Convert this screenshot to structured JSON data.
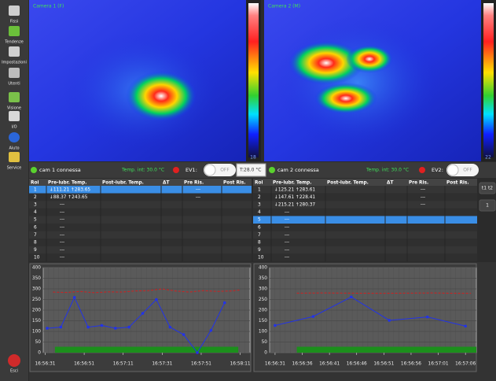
{
  "sidebar": {
    "items": [
      "Fissi",
      "Tendenze",
      "Impostazioni",
      "Utenti",
      "Visione",
      "I/O",
      "Aiuto",
      "Service"
    ],
    "exit": "Esci"
  },
  "cameras": [
    {
      "label": "Camera 1 (F)",
      "scale_bottom": "18"
    },
    {
      "label": "Camera 2 (M)",
      "scale_bottom": "22"
    }
  ],
  "status": [
    {
      "connection": "cam 1 connessa",
      "temp": "Temp. int: 30.0 °C",
      "ev": "EV1:",
      "toggle": "OFF",
      "setpoint": "T:28.0 °C"
    },
    {
      "connection": "cam 2 connessa",
      "temp": "Temp. int: 30.0 °C",
      "ev": "EV2:",
      "toggle": "OFF"
    }
  ],
  "tables": [
    {
      "columns": [
        "Roi",
        "Pre-lubr. Temp.",
        "Post-lubr. Temp.",
        "ΔT",
        "Pre Ris.",
        "Post Ris."
      ],
      "selected_row": 0,
      "rows": [
        {
          "roi": "1",
          "pre": "↓111.21 ↑283.65",
          "pre_ris": "---"
        },
        {
          "roi": "2",
          "pre": "↓88.37 ↑243.65",
          "pre_ris": "---"
        },
        {
          "roi": "3",
          "pre": "---"
        },
        {
          "roi": "4",
          "pre": "---"
        },
        {
          "roi": "5",
          "pre": "---"
        },
        {
          "roi": "6",
          "pre": "---"
        },
        {
          "roi": "7",
          "pre": "---"
        },
        {
          "roi": "8",
          "pre": "---"
        },
        {
          "roi": "9",
          "pre": "---"
        },
        {
          "roi": "10",
          "pre": "---"
        }
      ]
    },
    {
      "columns": [
        "Roi",
        "Pre-lubr. Temp.",
        "Post-lubr. Temp.",
        "ΔT",
        "Pre Ris.",
        "Post Ris."
      ],
      "selected_row": 4,
      "rows": [
        {
          "roi": "1",
          "pre": "↓125.21 ↑283.61",
          "pre_ris": "---"
        },
        {
          "roi": "2",
          "pre": "↓147.61 ↑228.41",
          "pre_ris": "---"
        },
        {
          "roi": "3",
          "pre": "↓215.21 ↑280.37",
          "pre_ris": "---"
        },
        {
          "roi": "4",
          "pre": "---"
        },
        {
          "roi": "5",
          "pre": "---"
        },
        {
          "roi": "6",
          "pre": "---"
        },
        {
          "roi": "7",
          "pre": "---"
        },
        {
          "roi": "8",
          "pre": "---"
        },
        {
          "roi": "9",
          "pre": "---"
        },
        {
          "roi": "10",
          "pre": "---"
        }
      ]
    }
  ],
  "side_buttons": [
    "t1 t2",
    "1"
  ],
  "chart_data": [
    {
      "type": "line",
      "grid": true,
      "xlim": [
        60990,
        61096
      ],
      "ylim": [
        0,
        400
      ],
      "yticks": [
        0,
        50,
        100,
        150,
        200,
        250,
        300,
        350,
        400
      ],
      "xticks": [
        {
          "value": 60991,
          "label": "16:56:31"
        },
        {
          "value": 61011,
          "label": "16:56:51"
        },
        {
          "value": 61031,
          "label": "16:57:11"
        },
        {
          "value": 61051,
          "label": "16:57:31"
        },
        {
          "value": 61071,
          "label": "16:57:51"
        },
        {
          "value": 61091,
          "label": "16:58:11"
        }
      ],
      "series": [
        {
          "color": "#1c8f1c",
          "fill": true,
          "x": [
            60996,
            61090
          ],
          "values": [
            28,
            28
          ]
        },
        {
          "color": "#d02020",
          "dashed": true,
          "x": [
            60995,
            61002,
            61009,
            61016,
            61023,
            61030,
            61037,
            61044,
            61051,
            61058,
            61065,
            61072,
            61079,
            61086,
            61091
          ],
          "values": [
            285,
            283,
            288,
            282,
            286,
            285,
            290,
            292,
            300,
            290,
            285,
            292,
            288,
            290,
            295
          ]
        },
        {
          "color": "#2233e8",
          "markers": true,
          "x": [
            60992,
            60999,
            61006,
            61013,
            61020,
            61027,
            61034,
            61041,
            61048,
            61055,
            61062,
            61069,
            61076,
            61083
          ],
          "values": [
            115,
            120,
            260,
            120,
            128,
            115,
            120,
            185,
            250,
            120,
            85,
            0,
            105,
            235
          ]
        }
      ]
    },
    {
      "type": "line",
      "grid": true,
      "xlim": [
        60990,
        61028
      ],
      "ylim": [
        0,
        400
      ],
      "yticks": [
        0,
        50,
        100,
        150,
        200,
        250,
        300,
        350,
        400
      ],
      "xticks": [
        {
          "value": 60991,
          "label": "16:56:31"
        },
        {
          "value": 60996,
          "label": "16:56:36"
        },
        {
          "value": 61001,
          "label": "16:56:41"
        },
        {
          "value": 61006,
          "label": "16:56:46"
        },
        {
          "value": 61011,
          "label": "16:56:51"
        },
        {
          "value": 61016,
          "label": "16:56:56"
        },
        {
          "value": 61021,
          "label": "16:57:01"
        },
        {
          "value": 61026,
          "label": "16:57:06"
        }
      ],
      "series": [
        {
          "color": "#1c8f1c",
          "fill": true,
          "x": [
            60995,
            61028
          ],
          "values": [
            28,
            28
          ]
        },
        {
          "color": "#d02020",
          "dashed": true,
          "x": [
            60995,
            61000,
            61005,
            61010,
            61015,
            61020,
            61025,
            61027
          ],
          "values": [
            280,
            281,
            280,
            279,
            280,
            281,
            279,
            279
          ]
        },
        {
          "color": "#2233e8",
          "markers": true,
          "x": [
            60991,
            60998,
            61005,
            61012,
            61019,
            61026
          ],
          "values": [
            128,
            170,
            262,
            152,
            168,
            125
          ]
        }
      ]
    }
  ]
}
